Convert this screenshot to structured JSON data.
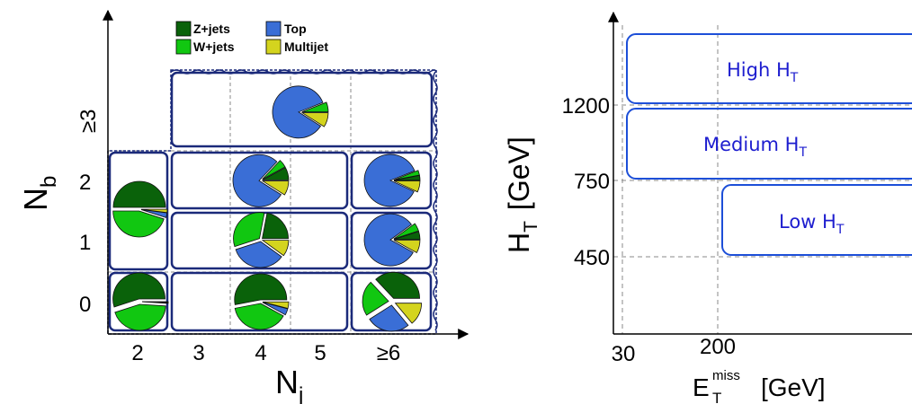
{
  "colors": {
    "zjets": "#0a620a",
    "wjets": "#11c711",
    "top": "#3a6ed6",
    "multijet": "#d4d41e",
    "box_border": "#1b2a7a",
    "region_border": "#1d4fd8",
    "region_text": "#1d1dcf"
  },
  "left_diagram": {
    "legend": [
      {
        "key": "zjets",
        "label": "Z+jets"
      },
      {
        "key": "top",
        "label": "Top"
      },
      {
        "key": "wjets",
        "label": "W+jets"
      },
      {
        "key": "multijet",
        "label": "Multijet"
      }
    ],
    "y_axis_label": "N",
    "y_axis_sub": "b",
    "x_axis_label": "N",
    "x_axis_sub": "j",
    "y_ticks": [
      "0",
      "1",
      "2",
      "≥3"
    ],
    "x_ticks": [
      "2",
      "3",
      "4",
      "5",
      "≥6"
    ],
    "pies": [
      {
        "id": "nb3-nj4",
        "fractions": {
          "zjets": 0.0,
          "wjets": 0.06,
          "top": 0.85,
          "multijet": 0.09
        }
      },
      {
        "id": "nb2-nj2",
        "fractions": {
          "zjets": 0.5,
          "wjets": 0.45,
          "top": 0.03,
          "multijet": 0.02
        }
      },
      {
        "id": "nb2-nj4",
        "fractions": {
          "zjets": 0.08,
          "wjets": 0.05,
          "top": 0.78,
          "multijet": 0.09
        }
      },
      {
        "id": "nb2-nj6",
        "fractions": {
          "zjets": 0.03,
          "wjets": 0.03,
          "top": 0.87,
          "multijet": 0.07
        }
      },
      {
        "id": "nb1-nj4",
        "fractions": {
          "zjets": 0.22,
          "wjets": 0.33,
          "top": 0.35,
          "multijet": 0.1
        }
      },
      {
        "id": "nb1-nj6",
        "fractions": {
          "zjets": 0.05,
          "wjets": 0.05,
          "top": 0.82,
          "multijet": 0.08
        }
      },
      {
        "id": "nb0-nj2",
        "fractions": {
          "zjets": 0.55,
          "wjets": 0.44,
          "top": 0.005,
          "multijet": 0.005
        }
      },
      {
        "id": "nb0-nj4",
        "fractions": {
          "zjets": 0.53,
          "wjets": 0.39,
          "top": 0.04,
          "multijet": 0.04
        }
      },
      {
        "id": "nb0-nj6",
        "fractions": {
          "zjets": 0.37,
          "wjets": 0.22,
          "top": 0.27,
          "multijet": 0.14
        }
      }
    ]
  },
  "right_diagram": {
    "y_axis_label": "H",
    "y_axis_sub": "T",
    "y_axis_unit": "[GeV]",
    "x_axis_label": "E",
    "x_axis_sup": "miss",
    "x_axis_sub": "T",
    "x_axis_unit": "[GeV]",
    "y_ticks": [
      "1200",
      "750",
      "450"
    ],
    "x_ticks": [
      "30",
      "200"
    ],
    "regions": [
      {
        "id": "high",
        "label": "High H",
        "sub": "T"
      },
      {
        "id": "medium",
        "label": "Medium H",
        "sub": "T"
      },
      {
        "id": "low",
        "label": "Low H",
        "sub": "T"
      }
    ]
  }
}
